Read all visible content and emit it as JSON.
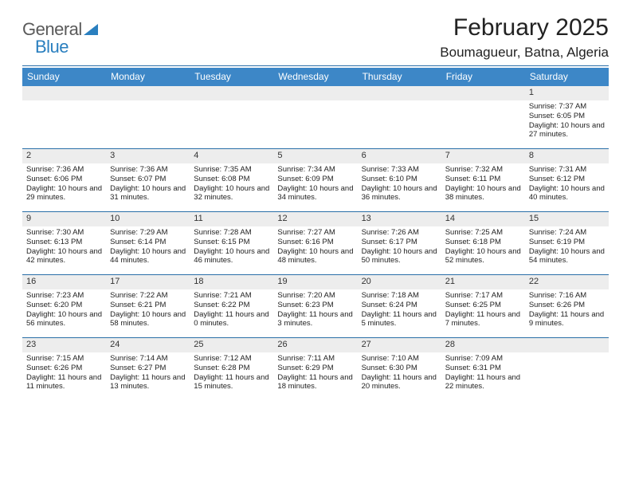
{
  "brand": {
    "part1": "General",
    "part2": "Blue"
  },
  "title": "February 2025",
  "location": "Boumagueur, Batna, Algeria",
  "colors": {
    "header_bg": "#3d87c7",
    "rule": "#2a6fa8",
    "daynum_bg": "#ededed",
    "brand_blue": "#2a7fbf",
    "text": "#222222"
  },
  "weekdays": [
    "Sunday",
    "Monday",
    "Tuesday",
    "Wednesday",
    "Thursday",
    "Friday",
    "Saturday"
  ],
  "weeks": [
    [
      {
        "n": "",
        "sr": "",
        "ss": "",
        "dl": ""
      },
      {
        "n": "",
        "sr": "",
        "ss": "",
        "dl": ""
      },
      {
        "n": "",
        "sr": "",
        "ss": "",
        "dl": ""
      },
      {
        "n": "",
        "sr": "",
        "ss": "",
        "dl": ""
      },
      {
        "n": "",
        "sr": "",
        "ss": "",
        "dl": ""
      },
      {
        "n": "",
        "sr": "",
        "ss": "",
        "dl": ""
      },
      {
        "n": "1",
        "sr": "Sunrise: 7:37 AM",
        "ss": "Sunset: 6:05 PM",
        "dl": "Daylight: 10 hours and 27 minutes."
      }
    ],
    [
      {
        "n": "2",
        "sr": "Sunrise: 7:36 AM",
        "ss": "Sunset: 6:06 PM",
        "dl": "Daylight: 10 hours and 29 minutes."
      },
      {
        "n": "3",
        "sr": "Sunrise: 7:36 AM",
        "ss": "Sunset: 6:07 PM",
        "dl": "Daylight: 10 hours and 31 minutes."
      },
      {
        "n": "4",
        "sr": "Sunrise: 7:35 AM",
        "ss": "Sunset: 6:08 PM",
        "dl": "Daylight: 10 hours and 32 minutes."
      },
      {
        "n": "5",
        "sr": "Sunrise: 7:34 AM",
        "ss": "Sunset: 6:09 PM",
        "dl": "Daylight: 10 hours and 34 minutes."
      },
      {
        "n": "6",
        "sr": "Sunrise: 7:33 AM",
        "ss": "Sunset: 6:10 PM",
        "dl": "Daylight: 10 hours and 36 minutes."
      },
      {
        "n": "7",
        "sr": "Sunrise: 7:32 AM",
        "ss": "Sunset: 6:11 PM",
        "dl": "Daylight: 10 hours and 38 minutes."
      },
      {
        "n": "8",
        "sr": "Sunrise: 7:31 AM",
        "ss": "Sunset: 6:12 PM",
        "dl": "Daylight: 10 hours and 40 minutes."
      }
    ],
    [
      {
        "n": "9",
        "sr": "Sunrise: 7:30 AM",
        "ss": "Sunset: 6:13 PM",
        "dl": "Daylight: 10 hours and 42 minutes."
      },
      {
        "n": "10",
        "sr": "Sunrise: 7:29 AM",
        "ss": "Sunset: 6:14 PM",
        "dl": "Daylight: 10 hours and 44 minutes."
      },
      {
        "n": "11",
        "sr": "Sunrise: 7:28 AM",
        "ss": "Sunset: 6:15 PM",
        "dl": "Daylight: 10 hours and 46 minutes."
      },
      {
        "n": "12",
        "sr": "Sunrise: 7:27 AM",
        "ss": "Sunset: 6:16 PM",
        "dl": "Daylight: 10 hours and 48 minutes."
      },
      {
        "n": "13",
        "sr": "Sunrise: 7:26 AM",
        "ss": "Sunset: 6:17 PM",
        "dl": "Daylight: 10 hours and 50 minutes."
      },
      {
        "n": "14",
        "sr": "Sunrise: 7:25 AM",
        "ss": "Sunset: 6:18 PM",
        "dl": "Daylight: 10 hours and 52 minutes."
      },
      {
        "n": "15",
        "sr": "Sunrise: 7:24 AM",
        "ss": "Sunset: 6:19 PM",
        "dl": "Daylight: 10 hours and 54 minutes."
      }
    ],
    [
      {
        "n": "16",
        "sr": "Sunrise: 7:23 AM",
        "ss": "Sunset: 6:20 PM",
        "dl": "Daylight: 10 hours and 56 minutes."
      },
      {
        "n": "17",
        "sr": "Sunrise: 7:22 AM",
        "ss": "Sunset: 6:21 PM",
        "dl": "Daylight: 10 hours and 58 minutes."
      },
      {
        "n": "18",
        "sr": "Sunrise: 7:21 AM",
        "ss": "Sunset: 6:22 PM",
        "dl": "Daylight: 11 hours and 0 minutes."
      },
      {
        "n": "19",
        "sr": "Sunrise: 7:20 AM",
        "ss": "Sunset: 6:23 PM",
        "dl": "Daylight: 11 hours and 3 minutes."
      },
      {
        "n": "20",
        "sr": "Sunrise: 7:18 AM",
        "ss": "Sunset: 6:24 PM",
        "dl": "Daylight: 11 hours and 5 minutes."
      },
      {
        "n": "21",
        "sr": "Sunrise: 7:17 AM",
        "ss": "Sunset: 6:25 PM",
        "dl": "Daylight: 11 hours and 7 minutes."
      },
      {
        "n": "22",
        "sr": "Sunrise: 7:16 AM",
        "ss": "Sunset: 6:26 PM",
        "dl": "Daylight: 11 hours and 9 minutes."
      }
    ],
    [
      {
        "n": "23",
        "sr": "Sunrise: 7:15 AM",
        "ss": "Sunset: 6:26 PM",
        "dl": "Daylight: 11 hours and 11 minutes."
      },
      {
        "n": "24",
        "sr": "Sunrise: 7:14 AM",
        "ss": "Sunset: 6:27 PM",
        "dl": "Daylight: 11 hours and 13 minutes."
      },
      {
        "n": "25",
        "sr": "Sunrise: 7:12 AM",
        "ss": "Sunset: 6:28 PM",
        "dl": "Daylight: 11 hours and 15 minutes."
      },
      {
        "n": "26",
        "sr": "Sunrise: 7:11 AM",
        "ss": "Sunset: 6:29 PM",
        "dl": "Daylight: 11 hours and 18 minutes."
      },
      {
        "n": "27",
        "sr": "Sunrise: 7:10 AM",
        "ss": "Sunset: 6:30 PM",
        "dl": "Daylight: 11 hours and 20 minutes."
      },
      {
        "n": "28",
        "sr": "Sunrise: 7:09 AM",
        "ss": "Sunset: 6:31 PM",
        "dl": "Daylight: 11 hours and 22 minutes."
      },
      {
        "n": "",
        "sr": "",
        "ss": "",
        "dl": ""
      }
    ]
  ]
}
